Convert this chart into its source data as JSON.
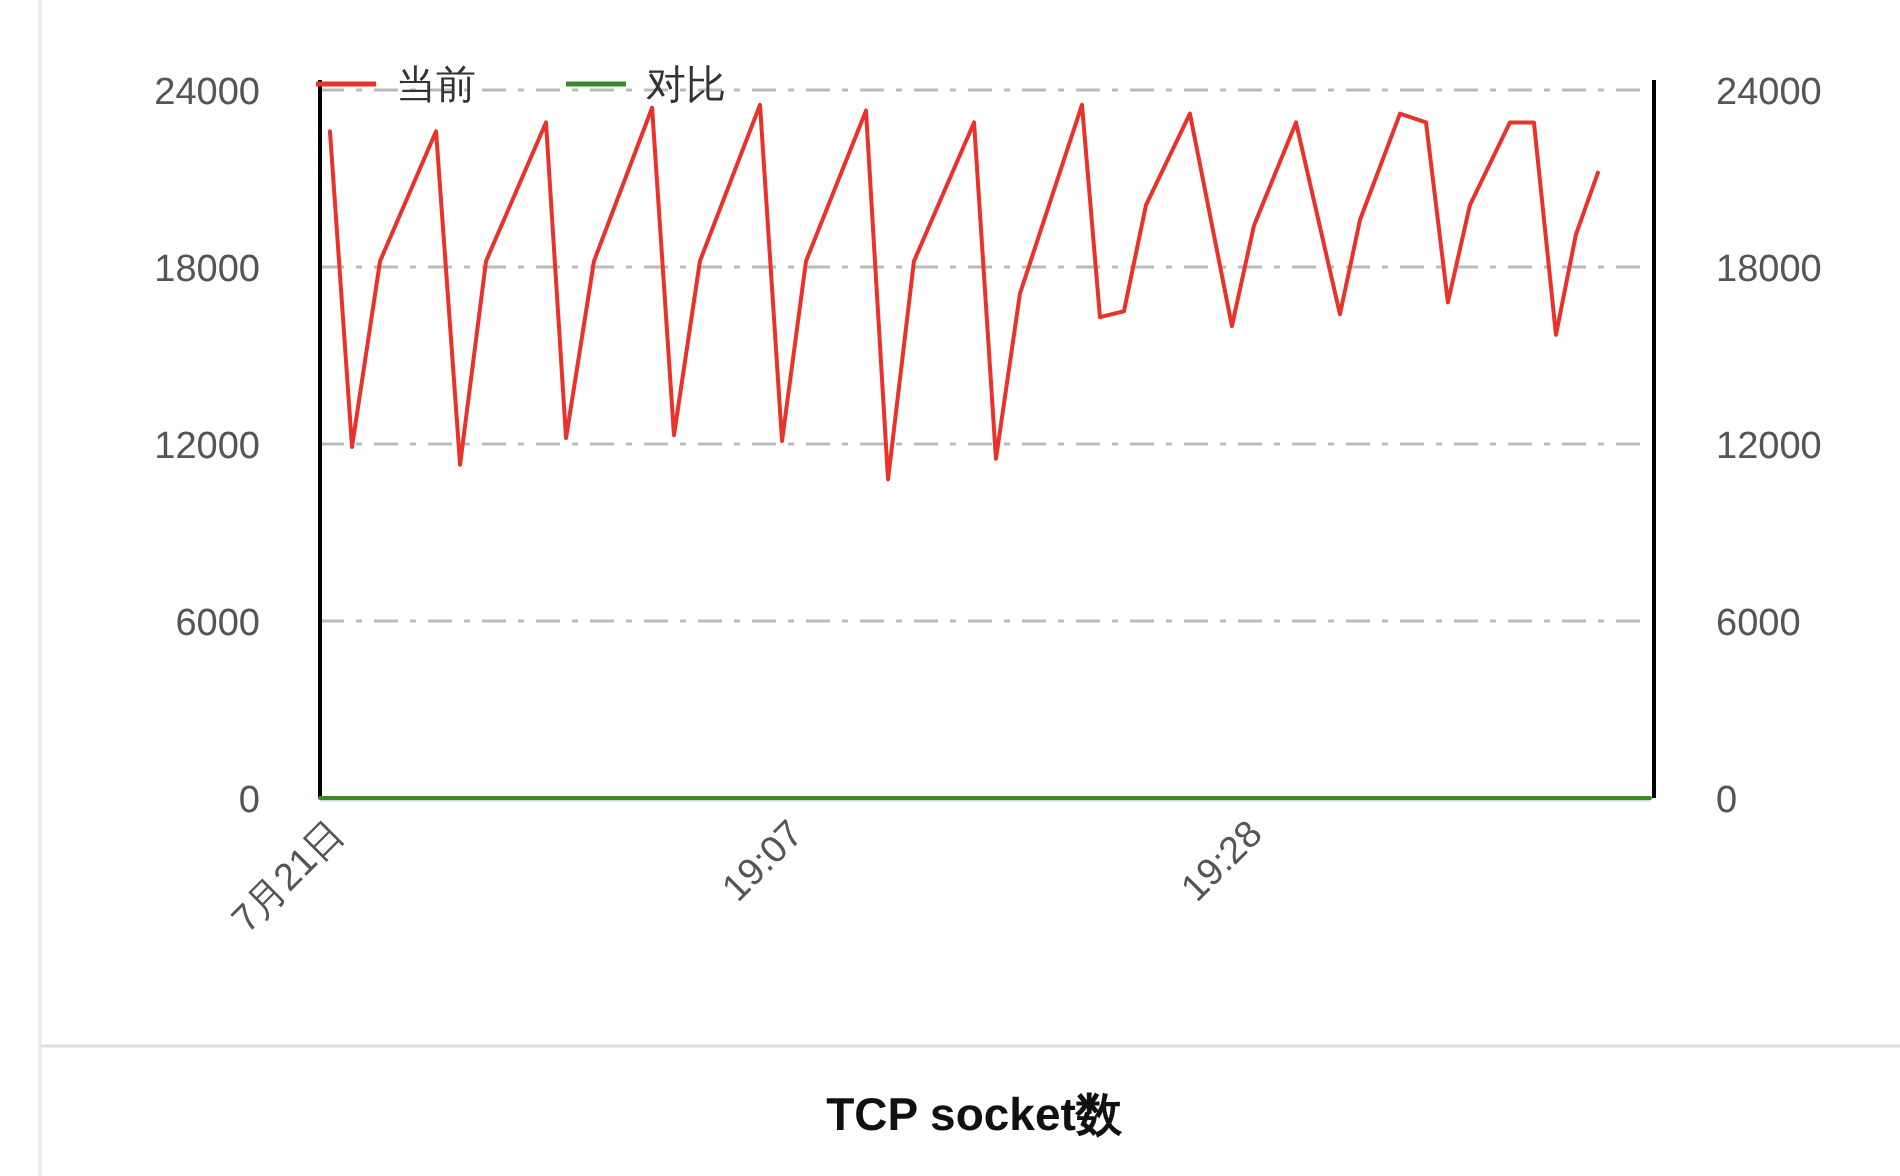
{
  "chart_data": {
    "type": "line",
    "title": "TCP socket数",
    "xlim": [
      18.7621,
      19.7762
    ],
    "xticks": [
      {
        "value": 18.7667,
        "label": "7月21日"
      },
      {
        "value": 19.1167,
        "label": "19:07"
      },
      {
        "value": 19.4667,
        "label": "19:28"
      }
    ],
    "ylim": [
      0,
      24000
    ],
    "yticks": [
      0,
      6000,
      12000,
      18000,
      24000
    ],
    "y2lim": [
      0,
      24000
    ],
    "y2ticks": [
      0,
      6000,
      12000,
      18000,
      24000
    ],
    "grid": "y",
    "legend": "top left",
    "series": [
      {
        "name": "当前",
        "color": "#e8322a",
        "x": [
          18.7697,
          18.7865,
          18.8079,
          18.8506,
          18.8689,
          18.8887,
          18.9344,
          18.9497,
          18.971,
          19.0153,
          19.032,
          19.0518,
          19.0976,
          19.1144,
          19.1327,
          19.1784,
          19.1952,
          19.215,
          19.2608,
          19.2775,
          19.2958,
          19.3431,
          19.3568,
          19.3751,
          19.3919,
          19.4254,
          19.4574,
          19.4742,
          19.5063,
          19.5398,
          19.5551,
          19.5856,
          19.6054,
          19.6221,
          19.6389,
          19.6694,
          19.6877,
          19.7045,
          19.7197,
          19.7365
        ],
        "values": [
          22600,
          11900,
          18200,
          22600,
          11300,
          18200,
          22900,
          12200,
          18200,
          23400,
          12300,
          18200,
          23500,
          12100,
          18200,
          23300,
          10800,
          18200,
          22900,
          11500,
          17100,
          23500,
          16300,
          16500,
          20100,
          23200,
          16000,
          19400,
          22900,
          16400,
          19600,
          23200,
          22900,
          16800,
          20100,
          22900,
          22900,
          15700,
          19100,
          21200
        ]
      },
      {
        "name": "对比",
        "color": "#3a8a2a",
        "x": [
          18.7621,
          19.7762
        ],
        "values": [
          0,
          0
        ]
      }
    ]
  }
}
